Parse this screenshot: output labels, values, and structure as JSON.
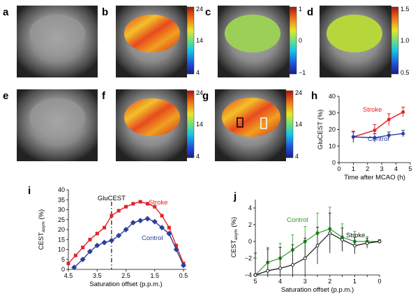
{
  "panel_labels": {
    "a": "a",
    "b": "b",
    "c": "c",
    "d": "d",
    "e": "e",
    "f": "f",
    "g": "g",
    "h": "h",
    "i": "i",
    "j": "j"
  },
  "colorbars": {
    "b": {
      "top": "24",
      "mid": "14",
      "bottom": "4"
    },
    "c": {
      "top": "1",
      "mid": "0",
      "bottom": "−1"
    },
    "d": {
      "top": "1.5",
      "mid": "1.0",
      "bottom": "0.5"
    },
    "f": {
      "top": "24",
      "mid": "14",
      "bottom": "4"
    },
    "g": {
      "top": "24",
      "mid": "14",
      "bottom": "4"
    }
  },
  "colors": {
    "stroke": "#e32226",
    "control": "#2b3f9e",
    "control_j": "#2e9b2e",
    "stroke_j": "#111111",
    "gluCEST_line": "#111111"
  },
  "chart_data": [
    {
      "panel": "h",
      "type": "line",
      "xlabel": "Time after MCAO (h)",
      "ylabel": "GluCEST (%)",
      "xlim": [
        0,
        5
      ],
      "ylim": [
        0,
        40
      ],
      "xticks": [
        "0",
        "1",
        "2",
        "3",
        "4",
        "5"
      ],
      "yticks": [
        "0",
        "10",
        "20",
        "30",
        "40"
      ],
      "series": [
        {
          "name": "Stroke",
          "x": [
            1,
            2.5,
            3.5,
            4.5
          ],
          "y": [
            15.5,
            19.5,
            26,
            30.5
          ],
          "err": [
            3.5,
            3.5,
            3.5,
            3
          ]
        },
        {
          "name": "Control",
          "x": [
            1,
            2.5,
            3.5,
            4.5
          ],
          "y": [
            15.5,
            15,
            16.5,
            17.5
          ],
          "err": [
            3,
            2.5,
            2,
            2
          ]
        }
      ]
    },
    {
      "panel": "i",
      "type": "line",
      "xlabel": "Saturation offset (p.p.m.)",
      "ylabel_main": "CEST",
      "ylabel_sub": "asym",
      "ylabel_unit": " (%)",
      "xlim": [
        4.5,
        0.5
      ],
      "ylim": [
        0,
        40
      ],
      "xticks": [
        "4.5",
        "3.5",
        "2.5",
        "1.5",
        "0.5"
      ],
      "yticks": [
        "0",
        "5",
        "10",
        "15",
        "20",
        "25",
        "30",
        "35",
        "40"
      ],
      "annotation": {
        "label": "GluCEST",
        "x": 3.0
      },
      "series": [
        {
          "name": "Stroke",
          "marker": "square",
          "x": [
            4.5,
            4.25,
            4.0,
            3.75,
            3.5,
            3.25,
            3.0,
            2.75,
            2.5,
            2.25,
            2.0,
            1.75,
            1.5,
            1.25,
            1.0,
            0.75,
            0.5
          ],
          "y": [
            3,
            7,
            11,
            15,
            18,
            21,
            27,
            29.5,
            31.5,
            33,
            34,
            33,
            31.5,
            27,
            21,
            12,
            3
          ]
        },
        {
          "name": "Control",
          "marker": "diamond",
          "x": [
            4.3,
            4.0,
            3.75,
            3.5,
            3.25,
            3.0,
            2.75,
            2.5,
            2.25,
            2.0,
            1.75,
            1.5,
            1.25,
            1.0,
            0.75,
            0.5
          ],
          "y": [
            1,
            5,
            9,
            12,
            13.5,
            14.5,
            17,
            20,
            23.5,
            24.5,
            25.5,
            24,
            21,
            18,
            10,
            2
          ]
        }
      ]
    },
    {
      "panel": "j",
      "type": "line",
      "xlabel": "Saturation offset (p.p.m.)",
      "ylabel_main": "CEST",
      "ylabel_sub": "asym",
      "ylabel_unit": " (%)",
      "xlim": [
        5,
        0
      ],
      "ylim": [
        -4,
        5
      ],
      "xticks": [
        "5",
        "4.5",
        "4",
        "3.5",
        "3",
        "2.5",
        "2",
        "1.5",
        "1",
        "0.5",
        "0"
      ],
      "yticks": [
        "−4",
        "−2",
        "0",
        "2",
        "4"
      ],
      "series": [
        {
          "name": "Control",
          "x": [
            5,
            4.5,
            4,
            3.5,
            3,
            2.5,
            2,
            1.5,
            1,
            0.5,
            0
          ],
          "y": [
            -4,
            -2.5,
            -2,
            -1,
            0,
            1,
            1.5,
            0.5,
            0,
            0,
            0
          ],
          "err": [
            2,
            1.8,
            1.8,
            1.8,
            1.8,
            2.4,
            2.6,
            1.6,
            1.2,
            0.6,
            0.2
          ]
        },
        {
          "name": "Stroke",
          "x": [
            5,
            4.5,
            4,
            3.5,
            3,
            2.5,
            2,
            1.5,
            1,
            0.5,
            0
          ],
          "y": [
            -4,
            -3.5,
            -3.2,
            -2.8,
            -2,
            -0.5,
            1,
            0.2,
            -0.5,
            -0.2,
            0
          ],
          "err": [
            2.6,
            2.6,
            2.5,
            2.4,
            2.4,
            2.2,
            2.4,
            1.4,
            1,
            0.6,
            0.2
          ]
        }
      ]
    }
  ]
}
